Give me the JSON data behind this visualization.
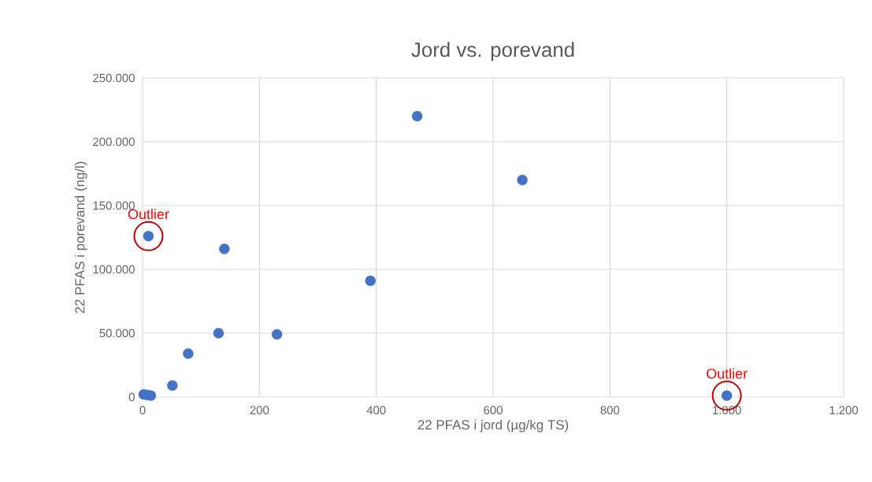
{
  "chart_data": {
    "type": "scatter",
    "title": "Jord vs. porevand",
    "xlabel": "22 PFAS i jord (µg/kg TS)",
    "ylabel": "22 PFAS i porevand (ng/l)",
    "x": [
      2,
      8,
      14,
      10,
      51,
      78,
      130,
      140,
      230,
      390,
      470,
      650,
      1000
    ],
    "values": [
      2000,
      1500,
      1000,
      126000,
      9000,
      34000,
      50000,
      116000,
      49000,
      91000,
      220000,
      170000,
      1000
    ],
    "color": "#4472c4",
    "marker": "circle",
    "grid": true,
    "xlim": [
      0,
      1200
    ],
    "xticks": [
      0,
      200,
      400,
      600,
      800,
      {
        "value": 1000,
        "label": "1.000"
      },
      {
        "value": 1200,
        "label": "1.200"
      }
    ],
    "ylim": [
      0,
      250000
    ],
    "yticks": [
      0,
      {
        "value": 50000,
        "label": "50.000"
      },
      {
        "value": 100000,
        "label": "100.000"
      },
      {
        "value": 150000,
        "label": "150.000"
      },
      {
        "value": 200000,
        "label": "200.000"
      },
      {
        "value": 250000,
        "label": "250.000"
      }
    ],
    "annotations": [
      {
        "text": "Outlier",
        "x": 10,
        "y": 126000
      },
      {
        "text": "Outlier",
        "x": 1000,
        "y": 1000
      }
    ]
  }
}
